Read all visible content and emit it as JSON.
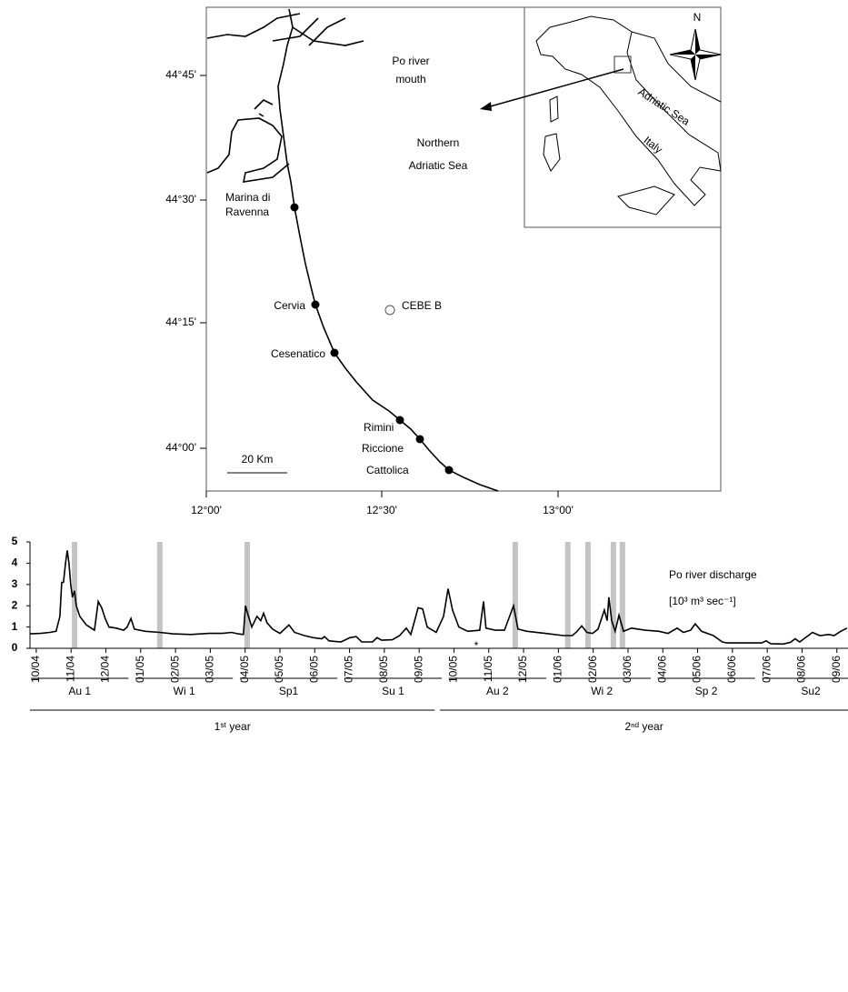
{
  "map": {
    "lat_labels": [
      "44°45'",
      "44°30'",
      "44°15'",
      "44°00'"
    ],
    "lon_labels": [
      "12°00'",
      "12°30'",
      "13°00'"
    ],
    "po_mouth": [
      "Po river",
      "mouth"
    ],
    "sea": [
      "Northern",
      "Adriatic Sea"
    ],
    "places": [
      [
        "Marina di",
        "Ravenna"
      ],
      [
        "Cervia"
      ],
      [
        "Cesenatico"
      ],
      [
        "Rimini"
      ],
      [
        "Riccione"
      ],
      [
        "Cattolica"
      ]
    ],
    "offshore_station": "CEBE B",
    "scale": "20 Km",
    "inset": {
      "sea": "Adriatic Sea",
      "country": "Italy",
      "north": "N"
    }
  },
  "chart_data": {
    "type": "line",
    "annotation": [
      "Po river discharge",
      "[10³ m³ sec⁻¹]"
    ],
    "color": "#000000",
    "x": [
      -0.18,
      0.13,
      0.39,
      0.57,
      0.68,
      0.73,
      0.78,
      0.84,
      0.89,
      0.94,
      0.99,
      1.04,
      1.1,
      1.15,
      1.25,
      1.44,
      1.67,
      1.78,
      1.88,
      1.98,
      2.09,
      2.3,
      2.51,
      2.61,
      2.72,
      2.82,
      3.13,
      3.55,
      3.92,
      4.44,
      4.96,
      5.35,
      5.61,
      5.8,
      5.95,
      6.01,
      6.08,
      6.19,
      6.34,
      6.45,
      6.53,
      6.63,
      6.79,
      7.0,
      7.26,
      7.42,
      7.7,
      7.96,
      8.2,
      8.28,
      8.41,
      8.75,
      9.01,
      9.19,
      9.35,
      9.66,
      9.79,
      9.92,
      10.23,
      10.44,
      10.63,
      10.76,
      10.97,
      11.1,
      11.23,
      11.49,
      11.7,
      11.83,
      11.96,
      12.14,
      12.4,
      12.74,
      12.85,
      12.92,
      13.19,
      13.45,
      13.71,
      13.84,
      14.1,
      14.62,
      15.14,
      15.4,
      15.54,
      15.67,
      15.82,
      15.98,
      16.14,
      16.32,
      16.4,
      16.45,
      16.53,
      16.63,
      16.74,
      16.87,
      17.1,
      17.49,
      17.89,
      18.15,
      18.41,
      18.59,
      18.8,
      18.93,
      19.11,
      19.45,
      19.71,
      19.84,
      20.84,
      20.97,
      21.1,
      21.46,
      21.67,
      21.8,
      21.93,
      22.14,
      22.3,
      22.51,
      22.77,
      22.92,
      23.11,
      23.29
    ],
    "values": [
      0.68,
      0.7,
      0.75,
      0.8,
      1.5,
      3.1,
      3.1,
      4.0,
      4.6,
      4.0,
      3.0,
      2.4,
      2.7,
      2.0,
      1.5,
      1.1,
      0.85,
      2.2,
      1.9,
      1.4,
      1.0,
      0.95,
      0.85,
      1.0,
      1.4,
      0.9,
      0.8,
      0.75,
      0.68,
      0.65,
      0.7,
      0.7,
      0.75,
      0.68,
      0.65,
      2.0,
      1.6,
      1.0,
      1.5,
      1.3,
      1.65,
      1.2,
      0.9,
      0.7,
      1.1,
      0.75,
      0.6,
      0.5,
      0.45,
      0.55,
      0.35,
      0.3,
      0.5,
      0.55,
      0.3,
      0.3,
      0.5,
      0.38,
      0.4,
      0.6,
      0.95,
      0.65,
      1.9,
      1.85,
      1.0,
      0.75,
      1.5,
      2.8,
      1.8,
      1.0,
      0.8,
      0.85,
      2.2,
      0.95,
      0.85,
      0.85,
      2.0,
      0.9,
      0.8,
      0.7,
      0.6,
      0.6,
      0.8,
      1.05,
      0.75,
      0.7,
      0.9,
      1.8,
      1.3,
      2.4,
      1.3,
      0.8,
      1.55,
      0.8,
      0.95,
      0.85,
      0.8,
      0.7,
      0.95,
      0.75,
      0.85,
      1.15,
      0.8,
      0.6,
      0.3,
      0.25,
      0.25,
      0.35,
      0.22,
      0.2,
      0.28,
      0.45,
      0.3,
      0.55,
      0.75,
      0.6,
      0.65,
      0.6,
      0.8,
      0.95
    ],
    "xlim": [
      -0.18,
      23.32
    ],
    "xticks": [
      {
        "value": 0,
        "label": "10/04"
      },
      {
        "value": 1,
        "label": "11/04"
      },
      {
        "value": 2,
        "label": "12/04"
      },
      {
        "value": 3,
        "label": "01/05"
      },
      {
        "value": 4,
        "label": "02/05"
      },
      {
        "value": 5,
        "label": "03/05"
      },
      {
        "value": 6,
        "label": "04/05"
      },
      {
        "value": 7,
        "label": "05/05"
      },
      {
        "value": 8,
        "label": "06/05"
      },
      {
        "value": 9,
        "label": "07/05"
      },
      {
        "value": 10,
        "label": "08/05"
      },
      {
        "value": 11,
        "label": "09/05"
      },
      {
        "value": 12,
        "label": "10/05"
      },
      {
        "value": 13,
        "label": "11/05"
      },
      {
        "value": 14,
        "label": "12/05"
      },
      {
        "value": 15,
        "label": "01/06"
      },
      {
        "value": 16,
        "label": "02/06"
      },
      {
        "value": 17,
        "label": "03/06"
      },
      {
        "value": 18,
        "label": "04/06"
      },
      {
        "value": 19,
        "label": "05/06"
      },
      {
        "value": 20,
        "label": "06/06"
      },
      {
        "value": 21,
        "label": "07/06"
      },
      {
        "value": 22,
        "label": "08/06"
      },
      {
        "value": 23,
        "label": "09/06"
      }
    ],
    "ylim": [
      0,
      5
    ],
    "yticks": [
      0,
      1,
      2,
      3,
      4,
      5
    ],
    "sampling_dates": [
      1.1,
      3.55,
      6.06,
      13.76,
      15.27,
      15.85,
      16.58,
      16.84
    ],
    "sampling_color": "#c4c4c4",
    "marker": {
      "label": "*",
      "x": 12.64
    },
    "seasons": [
      "Au 1",
      "Wi 1",
      "Sp1",
      "Su 1",
      "Au 2",
      "Wi 2",
      "Sp 2",
      "Su2"
    ],
    "years": [
      "1ˢᵗ year",
      "2ⁿᵈ year"
    ]
  }
}
